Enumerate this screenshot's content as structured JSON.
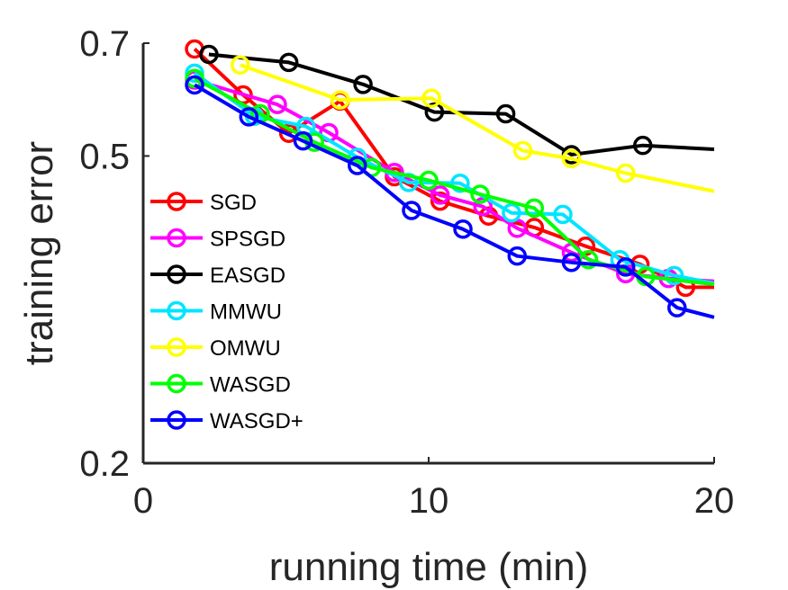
{
  "chart_data": {
    "type": "line",
    "title": "",
    "xlabel": "running time (min)",
    "ylabel": "training error",
    "xlim": [
      0,
      20
    ],
    "ylim": [
      0.2,
      0.7
    ],
    "y_scale": "log",
    "xticks": [
      0,
      10,
      20
    ],
    "xtick_labels": [
      "0",
      "10",
      "20"
    ],
    "yticks": [
      0.2,
      0.5,
      0.7
    ],
    "ytick_labels": [
      "0.2",
      "0.5",
      "0.7"
    ],
    "grid": false,
    "legend_position": "left",
    "series": [
      {
        "name": "SGD",
        "color": "#ff0000",
        "x": [
          1.8,
          3.5,
          5.1,
          6.9,
          8.8,
          10.4,
          12.1,
          13.7,
          15.5,
          17.4,
          19.0,
          20.0
        ],
        "y": [
          0.688,
          0.6,
          0.535,
          0.589,
          0.47,
          0.437,
          0.418,
          0.404,
          0.382,
          0.362,
          0.338,
          0.338
        ]
      },
      {
        "name": "SPSGD",
        "color": "#ff00ff",
        "x": [
          1.8,
          4.7,
          6.5,
          8.8,
          10.4,
          11.9,
          13.1,
          15.0,
          16.9,
          18.4,
          20.0
        ],
        "y": [
          0.627,
          0.583,
          0.536,
          0.476,
          0.445,
          0.43,
          0.403,
          0.375,
          0.352,
          0.347,
          0.344
        ]
      },
      {
        "name": "EASGD",
        "color": "#000000",
        "x": [
          2.3,
          5.1,
          7.7,
          10.2,
          12.7,
          15.0,
          17.5,
          20.0
        ],
        "y": [
          0.677,
          0.661,
          0.619,
          0.57,
          0.567,
          0.502,
          0.516,
          0.51
        ]
      },
      {
        "name": "MMWU",
        "color": "#00e5ff",
        "x": [
          1.8,
          3.9,
          5.7,
          7.5,
          9.3,
          11.1,
          12.9,
          14.7,
          16.7,
          18.6,
          20.0
        ],
        "y": [
          0.64,
          0.563,
          0.546,
          0.498,
          0.462,
          0.461,
          0.422,
          0.42,
          0.367,
          0.35,
          0.342
        ]
      },
      {
        "name": "OMWU",
        "color": "#ffff00",
        "x": [
          3.4,
          6.9,
          10.1,
          13.3,
          15.0,
          16.9,
          20.0
        ],
        "y": [
          0.656,
          0.591,
          0.594,
          0.508,
          0.496,
          0.475,
          0.45
        ]
      },
      {
        "name": "WASGD",
        "color": "#00ff00",
        "x": [
          1.8,
          4.1,
          6.0,
          8.0,
          10.0,
          11.8,
          13.7,
          15.6,
          17.6,
          20.0
        ],
        "y": [
          0.63,
          0.567,
          0.521,
          0.483,
          0.465,
          0.446,
          0.428,
          0.367,
          0.349,
          0.341
        ]
      },
      {
        "name": "WASGD+",
        "color": "#0000ff",
        "x": [
          1.8,
          3.7,
          5.6,
          7.5,
          9.4,
          11.2,
          13.1,
          15.0,
          16.9,
          18.7,
          20.0
        ],
        "y": [
          0.618,
          0.562,
          0.523,
          0.486,
          0.425,
          0.402,
          0.371,
          0.364,
          0.359,
          0.318,
          0.309
        ]
      }
    ]
  }
}
